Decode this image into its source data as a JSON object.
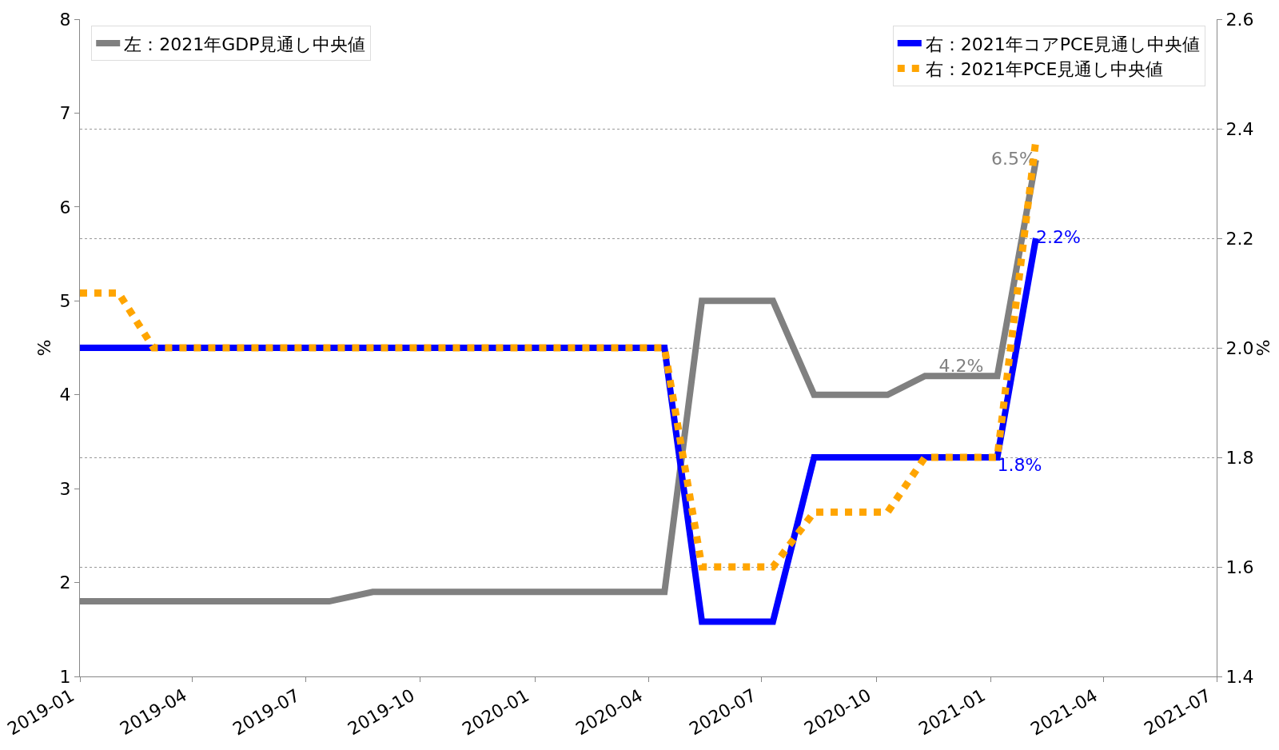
{
  "chart_data": {
    "type": "line",
    "xlim": [
      "2019-01",
      "2021-07"
    ],
    "xticks": [
      "2019-01",
      "2019-04",
      "2019-07",
      "2019-10",
      "2020-01",
      "2020-04",
      "2020-07",
      "2020-10",
      "2021-01",
      "2021-04",
      "2021-07"
    ],
    "ylim": [
      1,
      8
    ],
    "yticks": [
      1,
      2,
      3,
      4,
      5,
      6,
      7,
      8
    ],
    "y2lim": [
      1.4,
      2.6
    ],
    "y2ticks": [
      1.4,
      1.6,
      1.8,
      {
        "value": 2.0,
        "label": "2.0"
      },
      2.2,
      2.4,
      2.6
    ],
    "ylabel": "%",
    "y2label": "%",
    "grid": "y2",
    "legend": "top right",
    "line_style": "solid",
    "marker": "none",
    "series": [
      {
        "name": "左：2021年GDP見通し中央値",
        "color": "#808080",
        "x": [
          "2019-01-01",
          "2019-07-20",
          "2019-08-24",
          "2020-04-14",
          "2020-05-14",
          "2020-07-10",
          "2020-08-12",
          "2020-10-10",
          "2020-11-09",
          "2020-12-08",
          "2021-01-06",
          "2021-02-06"
        ],
        "values": [
          1.8,
          1.8,
          1.9,
          1.9,
          5.0,
          5.0,
          4.0,
          4.0,
          4.2,
          4.2,
          4.2,
          6.5
        ],
        "value_labels": [
          null,
          null,
          null,
          null,
          null,
          null,
          null,
          null,
          null,
          "4.2%",
          null,
          "6.5%"
        ]
      },
      {
        "name": "右：2021年コアPCE見通し中央値",
        "color": "#0000ff",
        "axis": "y2",
        "x": [
          "2019-01-01",
          "2020-04-14",
          "2020-05-14",
          "2020-07-10",
          "2020-08-12",
          "2021-01-06",
          "2021-02-06"
        ],
        "values": [
          2.0,
          2.0,
          1.5,
          1.5,
          1.8,
          1.8,
          2.2
        ],
        "value_labels": [
          null,
          null,
          null,
          null,
          null,
          "1.8%",
          "2.2%"
        ]
      },
      {
        "name": "右：2021年PCE見通し中央値",
        "color": "#ffa500",
        "axis": "y2",
        "line_style": "dotted",
        "x": [
          "2019-01-01",
          "2019-02-01",
          "2019-03-01",
          "2020-04-14",
          "2020-05-14",
          "2020-07-10",
          "2020-08-12",
          "2020-10-10",
          "2020-11-09",
          "2021-01-06",
          "2021-02-06"
        ],
        "values": [
          2.1,
          2.1,
          2.0,
          2.0,
          1.6,
          1.6,
          1.7,
          1.7,
          1.8,
          1.8,
          2.38
        ]
      }
    ]
  }
}
